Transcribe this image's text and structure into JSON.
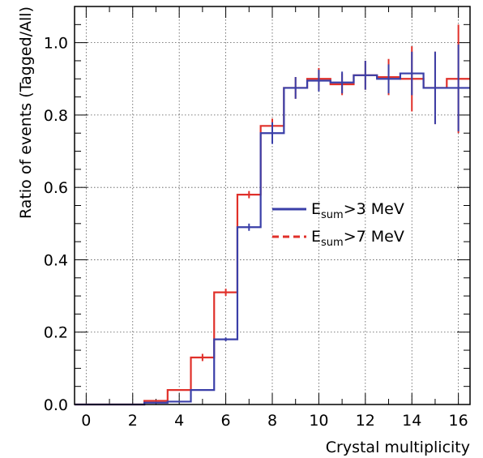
{
  "chart_data": {
    "type": "line",
    "xlabel": "Crystal multiplicity",
    "ylabel": "Ratio of events (Tagged/All)",
    "xlim": [
      -0.5,
      16.5
    ],
    "ylim": [
      0.0,
      1.1
    ],
    "grid": true,
    "x_ticks": [
      "0",
      "2",
      "4",
      "6",
      "8",
      "10",
      "12",
      "14",
      "16"
    ],
    "y_ticks": [
      "0.0",
      "0.2",
      "0.4",
      "0.6",
      "0.8",
      "1.0"
    ],
    "legend_position": "middle-right",
    "legend": [
      {
        "main": "E",
        "sub": "sum",
        "rest": ">3 MeV"
      },
      {
        "main": "E",
        "sub": "sum",
        "rest": ">7 MeV"
      }
    ],
    "series": [
      {
        "name": "Esum>3 MeV",
        "color": "#3a3fa8",
        "style": "solid",
        "x": [
          0,
          1,
          2,
          3,
          4,
          5,
          6,
          7,
          8,
          9,
          10,
          11,
          12,
          13,
          14,
          15,
          16
        ],
        "y": [
          0.0,
          0.0,
          0.0,
          0.005,
          0.008,
          0.04,
          0.18,
          0.49,
          0.75,
          0.875,
          0.895,
          0.89,
          0.91,
          0.9,
          0.915,
          0.875,
          0.875
        ],
        "err": [
          0,
          0,
          0,
          0,
          0,
          0,
          0.005,
          0.01,
          0.03,
          0.03,
          0.03,
          0.03,
          0.04,
          0.04,
          0.06,
          0.1,
          0.12
        ]
      },
      {
        "name": "Esum>7 MeV",
        "color": "#e0302a",
        "style": "solid",
        "x": [
          0,
          1,
          2,
          3,
          4,
          5,
          6,
          7,
          8,
          9,
          10,
          11,
          12,
          13,
          14,
          15,
          16
        ],
        "y": [
          0.0,
          0.0,
          0.0,
          0.01,
          0.04,
          0.13,
          0.31,
          0.58,
          0.77,
          0.875,
          0.9,
          0.885,
          0.91,
          0.905,
          0.9,
          0.875,
          0.9
        ],
        "err": [
          0,
          0,
          0,
          0,
          0,
          0.01,
          0.01,
          0.01,
          0.02,
          0.03,
          0.03,
          0.03,
          0.04,
          0.05,
          0.09,
          0.1,
          0.15
        ]
      }
    ]
  }
}
